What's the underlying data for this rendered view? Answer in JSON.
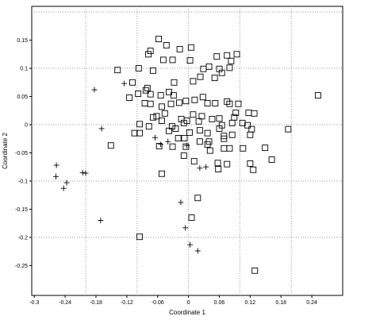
{
  "chart_data": {
    "type": "scatter",
    "x_label": "Coordinate 1",
    "y_label": "Coordinate 2",
    "xlim": [
      -0.305,
      0.3
    ],
    "ylim": [
      -0.303,
      0.21
    ],
    "xticks": [
      -0.3,
      -0.24,
      -0.18,
      -0.12,
      -0.06,
      0,
      0.06,
      0.12,
      0.18,
      0.24
    ],
    "yticks": [
      0.15,
      0.1,
      0.05,
      0,
      -0.05,
      -0.1,
      -0.15,
      -0.2,
      -0.25
    ],
    "xgrid": [
      -0.2,
      -0.1,
      0,
      0.1,
      0.2
    ],
    "ygrid": [
      0.2,
      0.1,
      0,
      -0.1,
      -0.2
    ],
    "series": [
      {
        "marker": "square",
        "color": "#000000",
        "x": [
          -0.058,
          -0.043,
          -0.017,
          0.005,
          -0.078,
          -0.074,
          -0.049,
          -0.031,
          0.003,
          0.055,
          0.075,
          0.083,
          0.094,
          -0.138,
          -0.097,
          -0.069,
          0.029,
          0.04,
          0.06,
          0.065,
          0.08,
          0.023,
          -0.028,
          0.009,
          0.051,
          -0.08,
          -0.083,
          -0.109,
          -0.115,
          -0.098,
          -0.074,
          -0.085,
          -0.074,
          -0.054,
          -0.038,
          -0.029,
          -0.034,
          -0.018,
          -0.005,
          0.012,
          0.028,
          0.037,
          0.052,
          0.075,
          0.08,
          0.097,
          0.092,
          0.117,
          0.128,
          -0.052,
          -0.046,
          -0.062,
          -0.052,
          -0.069,
          -0.014,
          -0.003,
          0.009,
          0.02,
          0.026,
          0.046,
          0.06,
          0.065,
          0.085,
          0.089,
          0.105,
          0.115,
          -0.095,
          -0.077,
          -0.032,
          -0.009,
          -0.038,
          -0.025,
          0.002,
          0.022,
          0.037,
          0.06,
          0.069,
          0.037,
          -0.105,
          -0.095,
          -0.02,
          -0.008,
          0.04,
          0.069,
          0.085,
          0.12,
          0.123,
          0.042,
          -0.009,
          0.011,
          0.057,
          0.075,
          0.058,
          0.12,
          0.126,
          0.162,
          0.149,
          0.194,
          0.252,
          -0.151,
          -0.057,
          -0.031,
          -0.052,
          0.018,
          0.006,
          -0.095,
          0.129,
          0.106,
          0.069,
          0.08,
          -0.005,
          0.022
        ],
        "values": [
          0.152,
          0.141,
          0.134,
          0.137,
          0.125,
          0.131,
          0.115,
          0.115,
          0.114,
          0.121,
          0.123,
          0.113,
          0.125,
          0.097,
          0.1,
          0.096,
          0.099,
          0.103,
          0.099,
          0.092,
          0.101,
          0.085,
          0.075,
          0.077,
          0.083,
          0.065,
          0.061,
          0.075,
          0.048,
          0.055,
          0.054,
          0.038,
          0.037,
          0.052,
          0.058,
          0.052,
          0.037,
          0.039,
          0.042,
          0.044,
          0.049,
          0.038,
          0.038,
          0.041,
          0.037,
          0.037,
          0.021,
          0.021,
          0.02,
          0.032,
          0.02,
          0.015,
          0.007,
          0.013,
          0.01,
          0.007,
          0.018,
          0.006,
          0.015,
          0.01,
          0.011,
          -0.001,
          0.003,
          0.013,
          0.003,
          -0.001,
          0.001,
          -0.003,
          -0.003,
          0.003,
          -0.011,
          -0.007,
          -0.014,
          -0.01,
          -0.015,
          -0.007,
          -0.02,
          -0.035,
          -0.015,
          -0.015,
          -0.024,
          -0.024,
          -0.03,
          -0.025,
          -0.018,
          -0.018,
          -0.008,
          -0.046,
          -0.055,
          -0.065,
          -0.068,
          -0.07,
          -0.079,
          -0.069,
          -0.08,
          -0.062,
          -0.041,
          -0.008,
          0.052,
          -0.037,
          -0.038,
          -0.039,
          -0.087,
          -0.13,
          -0.165,
          -0.199,
          -0.259,
          -0.042,
          -0.042,
          -0.042,
          -0.039,
          -0.03
        ]
      },
      {
        "marker": "plus",
        "color": "#000000",
        "x": [
          -0.183,
          -0.125,
          -0.169,
          -0.206,
          -0.2,
          -0.237,
          -0.243,
          -0.257,
          -0.258,
          -0.065,
          -0.054,
          -0.04,
          -0.003,
          -0.015,
          -0.006,
          0.003,
          0.018,
          0.022,
          0.034,
          -0.171
        ],
        "values": [
          0.062,
          0.073,
          -0.007,
          -0.085,
          -0.086,
          -0.103,
          -0.113,
          -0.072,
          -0.092,
          -0.023,
          -0.035,
          -0.03,
          -0.037,
          -0.138,
          -0.183,
          -0.213,
          -0.224,
          -0.077,
          -0.075,
          -0.17
        ]
      }
    ]
  }
}
